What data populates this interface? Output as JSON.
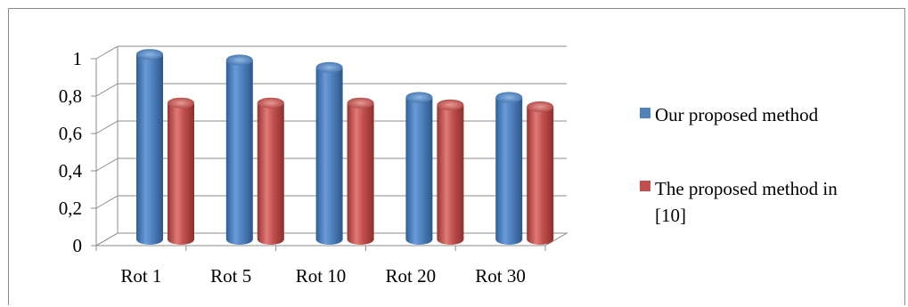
{
  "chart_data": {
    "type": "bar",
    "title": "",
    "xlabel": "",
    "ylabel": "",
    "categories": [
      "Rot 1",
      "Rot 5",
      "Rot 10",
      "Rot 20",
      "Rot 30"
    ],
    "ylim": [
      0,
      1
    ],
    "yticks": [
      "0",
      "0,2",
      "0,4",
      "0,6",
      "0,8",
      "1"
    ],
    "grid": true,
    "legend_position": "right",
    "series": [
      {
        "name": "Our proposed method",
        "values": [
          0.99,
          0.96,
          0.92,
          0.76,
          0.76
        ],
        "color": "#4f81bd"
      },
      {
        "name": "The proposed method in [10]",
        "values": [
          0.73,
          0.73,
          0.73,
          0.72,
          0.71
        ],
        "color": "#c0504d"
      }
    ]
  }
}
